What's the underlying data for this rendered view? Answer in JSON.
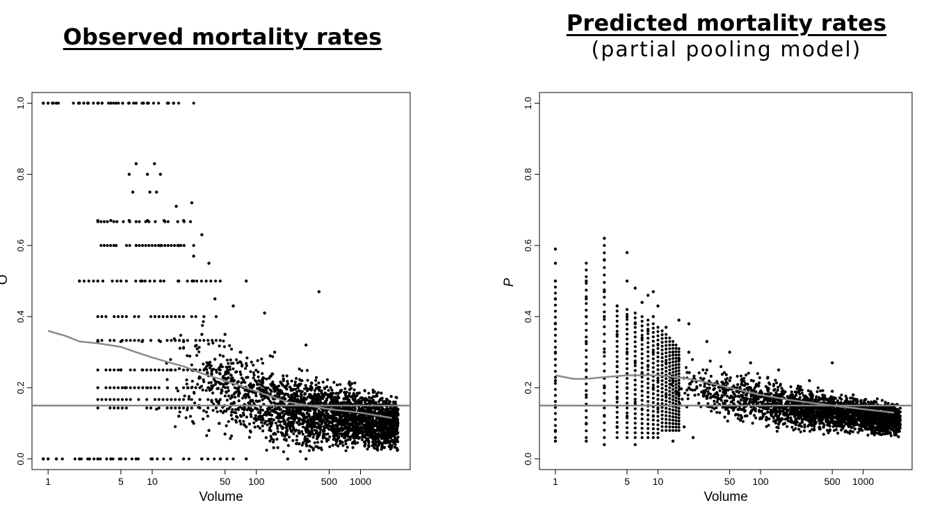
{
  "chart_data": [
    {
      "type": "scatter",
      "title": "Observed mortality rates",
      "subtitle": "",
      "xlabel": "Volume",
      "ylabel": "O",
      "x_scale": "log",
      "xlim": [
        0.7,
        3000
      ],
      "ylim": [
        -0.03,
        1.03
      ],
      "x_ticks": [
        1,
        5,
        10,
        50,
        100,
        500,
        1000
      ],
      "x_tick_labels": [
        "1",
        "5",
        "10",
        "50",
        "100",
        "500",
        "1000"
      ],
      "y_ticks": [
        0.0,
        0.2,
        0.4,
        0.6,
        0.8,
        1.0
      ],
      "y_tick_labels": [
        "0.0",
        "0.2",
        "0.4",
        "0.6",
        "0.8",
        "1.0"
      ],
      "reference_line": {
        "y": 0.15,
        "color": "#8a8478"
      },
      "smooth_curve": {
        "color": "#8a8a8a",
        "x": [
          1,
          1.5,
          2,
          3,
          5,
          7,
          10,
          15,
          20,
          30,
          50,
          100,
          200,
          500,
          1000,
          2000
        ],
        "y": [
          0.36,
          0.345,
          0.33,
          0.325,
          0.315,
          0.3,
          0.285,
          0.27,
          0.26,
          0.24,
          0.22,
          0.19,
          0.16,
          0.14,
          0.13,
          0.115
        ]
      },
      "points": [
        [
          0.9,
          1.0
        ],
        [
          1.0,
          1.0
        ],
        [
          1.1,
          1.0
        ],
        [
          1.2,
          1.0
        ],
        [
          2.0,
          1.0
        ],
        [
          2.2,
          1.0
        ],
        [
          2.4,
          1.0
        ],
        [
          3.0,
          1.0
        ],
        [
          3.3,
          1.0
        ],
        [
          4.0,
          1.0
        ],
        [
          4.5,
          1.0
        ],
        [
          5.2,
          1.0
        ],
        [
          6.0,
          1.0
        ],
        [
          7.0,
          1.0
        ],
        [
          8.0,
          1.0
        ],
        [
          9.0,
          1.0
        ],
        [
          14.0,
          1.0
        ],
        [
          16.0,
          1.0
        ],
        [
          0.9,
          0.0
        ],
        [
          1.0,
          0.0
        ],
        [
          1.2,
          0.0
        ],
        [
          2.0,
          0.0
        ],
        [
          2.5,
          0.0
        ],
        [
          3.0,
          0.0
        ],
        [
          4.0,
          0.0
        ],
        [
          5.0,
          0.0
        ],
        [
          7.0,
          0.0
        ],
        [
          10.0,
          0.0
        ],
        [
          15.0,
          0.0
        ],
        [
          20.0,
          0.0
        ],
        [
          30.0,
          0.0
        ],
        [
          45.0,
          0.0
        ],
        [
          80.0,
          0.0
        ],
        [
          200.0,
          0.0
        ],
        [
          300.0,
          0.0
        ],
        [
          7.0,
          0.83
        ],
        [
          10.5,
          0.83
        ],
        [
          6.0,
          0.8
        ],
        [
          9.0,
          0.8
        ],
        [
          12.0,
          0.8
        ],
        [
          6.5,
          0.75
        ],
        [
          9.5,
          0.75
        ],
        [
          11.0,
          0.75
        ],
        [
          17.0,
          0.71
        ],
        [
          24.0,
          0.72
        ],
        [
          3.0,
          0.67
        ],
        [
          4.0,
          0.67
        ],
        [
          6.0,
          0.67
        ],
        [
          9.0,
          0.67
        ],
        [
          13.0,
          0.67
        ],
        [
          20.0,
          0.67
        ],
        [
          30.0,
          0.63
        ],
        [
          4.5,
          0.6
        ],
        [
          7.0,
          0.6
        ],
        [
          12.0,
          0.6
        ],
        [
          18.0,
          0.6
        ],
        [
          25.0,
          0.57
        ],
        [
          35.0,
          0.55
        ],
        [
          2.0,
          0.5
        ],
        [
          3.0,
          0.5
        ],
        [
          5.0,
          0.5
        ],
        [
          8.0,
          0.5
        ],
        [
          12.0,
          0.5
        ],
        [
          18.0,
          0.5
        ],
        [
          25.0,
          0.5
        ],
        [
          80.0,
          0.5
        ],
        [
          400.0,
          0.47
        ],
        [
          40.0,
          0.45
        ],
        [
          60.0,
          0.43
        ],
        [
          120.0,
          0.41
        ],
        [
          3.0,
          0.33
        ],
        [
          5.0,
          0.33
        ],
        [
          8.0,
          0.33
        ],
        [
          12.0,
          0.33
        ],
        [
          20.0,
          0.33
        ],
        [
          30.0,
          0.35
        ],
        [
          50.0,
          0.35
        ],
        [
          5.0,
          0.25
        ],
        [
          8.0,
          0.25
        ],
        [
          15.0,
          0.25
        ],
        [
          25.0,
          0.25
        ],
        [
          40.0,
          0.28
        ],
        [
          70.0,
          0.3
        ],
        [
          150.0,
          0.3
        ],
        [
          300.0,
          0.32
        ],
        [
          5.5,
          0.2
        ],
        [
          9.0,
          0.2
        ],
        [
          14.0,
          0.2
        ],
        [
          22.0,
          0.2
        ],
        [
          35.0,
          0.2
        ],
        [
          60.0,
          0.21
        ],
        [
          90.0,
          0.19
        ],
        [
          150.0,
          0.2
        ],
        [
          250.0,
          0.2
        ],
        [
          400.0,
          0.18
        ],
        [
          700.0,
          0.17
        ],
        [
          1000.0,
          0.16
        ],
        [
          1500.0,
          0.14
        ],
        [
          2000.0,
          0.12
        ],
        [
          11.0,
          0.14
        ],
        [
          18.0,
          0.12
        ],
        [
          25.0,
          0.1
        ],
        [
          35.0,
          0.08
        ],
        [
          50.0,
          0.07
        ],
        [
          80.0,
          0.09
        ],
        [
          120.0,
          0.1
        ],
        [
          200.0,
          0.11
        ],
        [
          350.0,
          0.1
        ],
        [
          600.0,
          0.09
        ],
        [
          900.0,
          0.1
        ],
        [
          1300.0,
          0.08
        ],
        [
          2200.0,
          0.11
        ]
      ]
    },
    {
      "type": "scatter",
      "title": "Predicted mortality rates",
      "subtitle": "(partial pooling model)",
      "xlabel": "Volume",
      "ylabel": "P",
      "x_scale": "log",
      "xlim": [
        0.7,
        3000
      ],
      "ylim": [
        -0.03,
        1.03
      ],
      "x_ticks": [
        1,
        5,
        10,
        50,
        100,
        500,
        1000
      ],
      "x_tick_labels": [
        "1",
        "5",
        "10",
        "50",
        "100",
        "500",
        "1000"
      ],
      "y_ticks": [
        0.0,
        0.2,
        0.4,
        0.6,
        0.8,
        1.0
      ],
      "y_tick_labels": [
        "0.0",
        "0.2",
        "0.4",
        "0.6",
        "0.8",
        "1.0"
      ],
      "reference_line": {
        "y": 0.15,
        "color": "#8a8478"
      },
      "smooth_curve": {
        "color": "#8a8a8a",
        "x": [
          1,
          1.5,
          2,
          3,
          5,
          7,
          10,
          15,
          20,
          30,
          50,
          100,
          200,
          500,
          1000,
          2000
        ],
        "y": [
          0.235,
          0.225,
          0.225,
          0.23,
          0.235,
          0.235,
          0.235,
          0.23,
          0.225,
          0.215,
          0.2,
          0.18,
          0.165,
          0.15,
          0.14,
          0.13
        ]
      },
      "points": [
        [
          1.0,
          0.59
        ],
        [
          1.0,
          0.55
        ],
        [
          1.0,
          0.5
        ],
        [
          1.0,
          0.45
        ],
        [
          1.0,
          0.38
        ],
        [
          1.0,
          0.3
        ],
        [
          1.0,
          0.22
        ],
        [
          1.0,
          0.15
        ],
        [
          1.0,
          0.08
        ],
        [
          1.0,
          0.05
        ],
        [
          2.0,
          0.5
        ],
        [
          2.0,
          0.45
        ],
        [
          2.0,
          0.4
        ],
        [
          2.0,
          0.33
        ],
        [
          2.0,
          0.25
        ],
        [
          2.0,
          0.18
        ],
        [
          2.0,
          0.1
        ],
        [
          2.0,
          0.05
        ],
        [
          3.0,
          0.62
        ],
        [
          3.0,
          0.56
        ],
        [
          3.0,
          0.47
        ],
        [
          3.0,
          0.4
        ],
        [
          3.0,
          0.3
        ],
        [
          3.0,
          0.2
        ],
        [
          3.0,
          0.12
        ],
        [
          3.0,
          0.04
        ],
        [
          4.0,
          0.43
        ],
        [
          4.0,
          0.35
        ],
        [
          4.0,
          0.26
        ],
        [
          4.0,
          0.17
        ],
        [
          4.0,
          0.09
        ],
        [
          5.0,
          0.58
        ],
        [
          5.0,
          0.5
        ],
        [
          5.0,
          0.4
        ],
        [
          5.0,
          0.3
        ],
        [
          5.0,
          0.2
        ],
        [
          5.0,
          0.12
        ],
        [
          6.0,
          0.48
        ],
        [
          6.0,
          0.38
        ],
        [
          6.0,
          0.27
        ],
        [
          6.0,
          0.16
        ],
        [
          6.0,
          0.04
        ],
        [
          7.0,
          0.44
        ],
        [
          7.0,
          0.34
        ],
        [
          7.0,
          0.24
        ],
        [
          7.0,
          0.14
        ],
        [
          8.0,
          0.46
        ],
        [
          8.0,
          0.36
        ],
        [
          8.0,
          0.26
        ],
        [
          8.0,
          0.15
        ],
        [
          9.0,
          0.47
        ],
        [
          9.0,
          0.4
        ],
        [
          9.0,
          0.3
        ],
        [
          9.0,
          0.2
        ],
        [
          9.0,
          0.12
        ],
        [
          10.0,
          0.43
        ],
        [
          10.0,
          0.32
        ],
        [
          10.0,
          0.22
        ],
        [
          10.0,
          0.14
        ],
        [
          12.0,
          0.37
        ],
        [
          12.0,
          0.27
        ],
        [
          12.0,
          0.18
        ],
        [
          14.0,
          0.3
        ],
        [
          14.0,
          0.22
        ],
        [
          14.0,
          0.05
        ],
        [
          16.0,
          0.39
        ],
        [
          16.0,
          0.28
        ],
        [
          16.0,
          0.18
        ],
        [
          18.0,
          0.09
        ],
        [
          20.0,
          0.38
        ],
        [
          20.0,
          0.3
        ],
        [
          20.0,
          0.2
        ],
        [
          22.0,
          0.06
        ],
        [
          30.0,
          0.33
        ],
        [
          30.0,
          0.25
        ],
        [
          30.0,
          0.17
        ],
        [
          50.0,
          0.3
        ],
        [
          50.0,
          0.22
        ],
        [
          50.0,
          0.15
        ],
        [
          80.0,
          0.27
        ],
        [
          80.0,
          0.2
        ],
        [
          80.0,
          0.13
        ],
        [
          150.0,
          0.25
        ],
        [
          150.0,
          0.18
        ],
        [
          150.0,
          0.12
        ],
        [
          300.0,
          0.22
        ],
        [
          300.0,
          0.16
        ],
        [
          300.0,
          0.11
        ],
        [
          500.0,
          0.27
        ],
        [
          500.0,
          0.19
        ],
        [
          500.0,
          0.13
        ],
        [
          800.0,
          0.18
        ],
        [
          800.0,
          0.14
        ],
        [
          800.0,
          0.1
        ],
        [
          1200.0,
          0.16
        ],
        [
          1200.0,
          0.12
        ],
        [
          2000.0,
          0.15
        ],
        [
          2000.0,
          0.11
        ]
      ]
    }
  ]
}
